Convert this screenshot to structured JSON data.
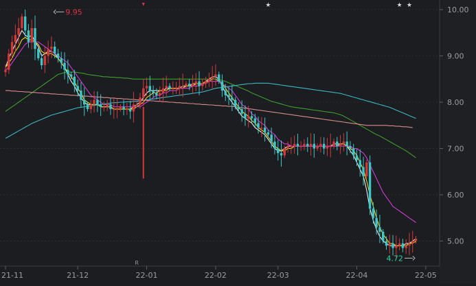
{
  "chart_data": {
    "type": "candlestick",
    "y_axis": {
      "ticks": [
        "10.00",
        "9.00",
        "8.00",
        "7.00",
        "6.00",
        "5.00"
      ],
      "tick_values": [
        10,
        9,
        8,
        7,
        6,
        5
      ],
      "ylim": [
        4.5,
        10.1
      ],
      "side": "right"
    },
    "x_axis": {
      "ticks": [
        "21-11",
        "21-12",
        "22-01",
        "22-02",
        "22-03",
        "22-04",
        "22-05"
      ],
      "tick_index": [
        0,
        22,
        43,
        64,
        83,
        107,
        128
      ]
    },
    "annotations": {
      "high": {
        "label": "9.95",
        "value": 9.95,
        "index": 8,
        "color": "#e0314b"
      },
      "low": {
        "label": "4.72",
        "value": 4.72,
        "index": 123,
        "color": "#2fd39a"
      }
    },
    "markers": [
      {
        "kind": "flag",
        "index": 42,
        "color": "#e0314b"
      },
      {
        "kind": "star",
        "index": 80,
        "color": "#d8d8d8"
      },
      {
        "kind": "star",
        "index": 120,
        "color": "#d8d8d8"
      },
      {
        "kind": "star",
        "index": 123,
        "color": "#d8d8d8"
      },
      {
        "kind": "R",
        "label": "R",
        "index": 40,
        "color": "#9a9a9a"
      }
    ],
    "colors": {
      "up": "#d23a3a",
      "down": "#3fc7c7",
      "grid": "#2c2f35",
      "axis_text": "#9a9da3",
      "background": "#1b1d21"
    },
    "closes": [
      8.7,
      9.05,
      9.3,
      9.45,
      9.6,
      9.85,
      9.55,
      9.3,
      9.6,
      9.15,
      8.95,
      8.8,
      9.0,
      9.15,
      9.2,
      9.05,
      8.95,
      8.85,
      8.7,
      8.6,
      8.55,
      8.35,
      8.25,
      8.05,
      7.95,
      7.85,
      7.95,
      8.05,
      7.95,
      7.9,
      7.9,
      7.95,
      7.85,
      7.85,
      7.85,
      7.9,
      7.85,
      7.85,
      7.8,
      7.95,
      7.95,
      8.1,
      8.3,
      8.35,
      8.25,
      8.2,
      8.15,
      8.2,
      8.3,
      8.35,
      8.3,
      8.3,
      8.3,
      8.35,
      8.35,
      8.4,
      8.35,
      8.4,
      8.45,
      8.35,
      8.4,
      8.45,
      8.5,
      8.55,
      8.6,
      8.45,
      8.25,
      8.15,
      8.1,
      8.05,
      7.9,
      7.85,
      7.75,
      7.65,
      7.7,
      7.65,
      7.55,
      7.45,
      7.45,
      7.35,
      7.3,
      7.15,
      7.0,
      6.9,
      6.85,
      7.0,
      7.05,
      7.05,
      7.1,
      7.05,
      7.05,
      7.1,
      7.05,
      7.1,
      7.0,
      7.05,
      7.1,
      7.0,
      7.05,
      7.05,
      7.15,
      7.05,
      7.1,
      7.15,
      7.05,
      7.0,
      6.85,
      6.75,
      6.6,
      6.4,
      6.7,
      5.7,
      5.5,
      5.3,
      5.2,
      5.0,
      4.9,
      4.95,
      4.85,
      4.9,
      4.95,
      4.85,
      4.9,
      4.95,
      5.0,
      5.05
    ],
    "series": [
      {
        "name": "",
        "color": "#f0f0f0",
        "values": [
          8.75,
          8.95,
          9.1,
          9.25,
          9.4,
          9.55,
          9.45,
          9.4,
          9.45,
          9.3,
          9.2,
          9.0,
          9.05,
          9.1,
          9.1,
          9.05,
          8.95,
          8.85,
          8.75,
          8.6,
          8.45,
          8.35,
          8.2,
          8.1,
          8.0,
          7.95,
          7.95,
          7.95,
          7.95,
          7.9,
          7.9,
          7.9,
          7.9,
          7.85,
          7.85,
          7.85,
          7.85,
          7.85,
          7.85,
          7.9,
          7.95,
          8.0,
          8.1,
          8.2,
          8.25,
          8.25,
          8.25,
          8.25,
          8.25,
          8.3,
          8.3,
          8.3,
          8.3,
          8.3,
          8.35,
          8.35,
          8.35,
          8.4,
          8.4,
          8.4,
          8.4,
          8.45,
          8.5,
          8.55,
          8.55,
          8.5,
          8.35,
          8.2,
          8.1,
          8.0,
          7.9,
          7.8,
          7.7,
          7.65,
          7.6,
          7.55,
          7.45,
          7.4,
          7.35,
          7.3,
          7.2,
          7.1,
          7.0,
          6.95,
          6.95,
          7.0,
          7.05,
          7.05,
          7.05,
          7.05,
          7.05,
          7.05,
          7.05,
          7.05,
          7.05,
          7.05,
          7.05,
          7.05,
          7.05,
          7.05,
          7.1,
          7.1,
          7.1,
          7.1,
          7.05,
          6.95,
          6.85,
          6.7,
          6.55,
          6.4,
          6.1,
          5.7,
          5.45,
          5.25,
          5.1,
          5.0,
          4.95,
          4.9,
          4.9,
          4.9,
          4.9,
          4.9,
          4.95,
          4.95,
          5.0,
          5.05
        ]
      },
      {
        "name": "",
        "color": "#f2d51c",
        "values": [
          8.75,
          8.85,
          8.95,
          9.1,
          9.2,
          9.35,
          9.4,
          9.35,
          9.35,
          9.3,
          9.25,
          9.1,
          9.05,
          9.05,
          9.05,
          9.0,
          8.95,
          8.85,
          8.75,
          8.65,
          8.55,
          8.45,
          8.3,
          8.2,
          8.05,
          8.0,
          7.95,
          7.95,
          7.95,
          7.9,
          7.9,
          7.9,
          7.9,
          7.85,
          7.85,
          7.85,
          7.85,
          7.85,
          7.85,
          7.85,
          7.9,
          7.95,
          8.0,
          8.1,
          8.15,
          8.2,
          8.2,
          8.25,
          8.25,
          8.25,
          8.3,
          8.3,
          8.3,
          8.3,
          8.3,
          8.35,
          8.35,
          8.35,
          8.4,
          8.4,
          8.4,
          8.45,
          8.45,
          8.5,
          8.5,
          8.45,
          8.4,
          8.3,
          8.2,
          8.1,
          8.0,
          7.9,
          7.8,
          7.75,
          7.7,
          7.6,
          7.55,
          7.45,
          7.4,
          7.35,
          7.25,
          7.15,
          7.05,
          7.0,
          6.95,
          6.95,
          7.0,
          7.0,
          7.05,
          7.05,
          7.05,
          7.05,
          7.05,
          7.05,
          7.05,
          7.05,
          7.05,
          7.05,
          7.05,
          7.05,
          7.05,
          7.05,
          7.1,
          7.1,
          7.05,
          7.0,
          6.95,
          6.85,
          6.7,
          6.55,
          6.3,
          6.0,
          5.75,
          5.5,
          5.3,
          5.15,
          5.05,
          4.95,
          4.95,
          4.9,
          4.9,
          4.9,
          4.9,
          4.95,
          4.95,
          5.0
        ]
      },
      {
        "name": "",
        "color": "#d33bd6",
        "values": [
          8.7,
          8.75,
          8.85,
          8.95,
          9.05,
          9.15,
          9.25,
          9.3,
          9.3,
          9.3,
          9.3,
          9.25,
          9.2,
          9.15,
          9.1,
          9.05,
          9.0,
          8.95,
          8.9,
          8.85,
          8.75,
          8.65,
          8.55,
          8.45,
          8.35,
          8.25,
          8.15,
          8.1,
          8.05,
          8.0,
          7.95,
          7.95,
          7.95,
          7.9,
          7.9,
          7.9,
          7.9,
          7.9,
          7.9,
          7.9,
          7.9,
          7.9,
          7.95,
          8.0,
          8.05,
          8.1,
          8.15,
          8.15,
          8.2,
          8.2,
          8.25,
          8.25,
          8.25,
          8.3,
          8.3,
          8.3,
          8.3,
          8.35,
          8.35,
          8.35,
          8.4,
          8.4,
          8.45,
          8.45,
          8.45,
          8.45,
          8.4,
          8.35,
          8.3,
          8.25,
          8.15,
          8.05,
          7.95,
          7.9,
          7.85,
          7.75,
          7.7,
          7.6,
          7.55,
          7.5,
          7.4,
          7.35,
          7.3,
          7.2,
          7.15,
          7.1,
          7.1,
          7.05,
          7.05,
          7.05,
          7.05,
          7.05,
          7.05,
          7.05,
          7.05,
          7.05,
          7.05,
          7.05,
          7.05,
          7.05,
          7.05,
          7.05,
          7.05,
          7.05,
          7.05,
          7.05,
          7.0,
          7.0,
          6.95,
          6.9,
          6.8,
          6.65,
          6.5,
          6.35,
          6.2,
          6.05,
          5.95,
          5.85,
          5.75,
          5.7,
          5.65,
          5.6,
          5.55,
          5.5,
          5.45,
          5.4
        ]
      },
      {
        "name": "",
        "color": "#3f9e2c",
        "values": [
          7.8,
          7.85,
          7.9,
          7.95,
          8.0,
          8.05,
          8.1,
          8.15,
          8.2,
          8.25,
          8.3,
          8.35,
          8.4,
          8.45,
          8.5,
          8.55,
          8.6,
          8.62,
          8.64,
          8.65,
          8.65,
          8.65,
          8.64,
          8.63,
          8.62,
          8.6,
          8.59,
          8.58,
          8.57,
          8.56,
          8.55,
          8.55,
          8.54,
          8.54,
          8.53,
          8.53,
          8.52,
          8.52,
          8.51,
          8.5,
          8.5,
          8.5,
          8.5,
          8.5,
          8.5,
          8.5,
          8.5,
          8.5,
          8.5,
          8.5,
          8.5,
          8.5,
          8.5,
          8.5,
          8.5,
          8.5,
          8.5,
          8.5,
          8.5,
          8.5,
          8.5,
          8.5,
          8.5,
          8.5,
          8.5,
          8.49,
          8.47,
          8.45,
          8.42,
          8.39,
          8.36,
          8.33,
          8.3,
          8.27,
          8.24,
          8.2,
          8.17,
          8.14,
          8.11,
          8.08,
          8.05,
          8.02,
          8.0,
          7.98,
          7.96,
          7.94,
          7.92,
          7.9,
          7.89,
          7.88,
          7.87,
          7.86,
          7.85,
          7.84,
          7.83,
          7.82,
          7.81,
          7.8,
          7.79,
          7.78,
          7.77,
          7.75,
          7.73,
          7.7,
          7.66,
          7.62,
          7.58,
          7.54,
          7.5,
          7.46,
          7.42,
          7.38,
          7.34,
          7.3,
          7.27,
          7.23,
          7.19,
          7.15,
          7.11,
          7.07,
          7.03,
          6.99,
          6.95,
          6.9,
          6.85,
          6.8
        ]
      },
      {
        "name": "",
        "color": "#3ab9c6",
        "values": [
          7.22,
          7.26,
          7.3,
          7.34,
          7.38,
          7.42,
          7.46,
          7.5,
          7.54,
          7.57,
          7.6,
          7.63,
          7.66,
          7.69,
          7.72,
          7.74,
          7.76,
          7.78,
          7.8,
          7.82,
          7.84,
          7.86,
          7.88,
          7.89,
          7.9,
          7.91,
          7.92,
          7.93,
          7.94,
          7.95,
          7.96,
          7.97,
          7.98,
          7.99,
          7.99,
          8.0,
          8.0,
          8.01,
          8.01,
          8.02,
          8.02,
          8.03,
          8.04,
          8.05,
          8.06,
          8.07,
          8.08,
          8.09,
          8.1,
          8.11,
          8.12,
          8.13,
          8.14,
          8.15,
          8.16,
          8.17,
          8.18,
          8.19,
          8.2,
          8.21,
          8.22,
          8.24,
          8.26,
          8.28,
          8.3,
          8.31,
          8.32,
          8.33,
          8.34,
          8.35,
          8.36,
          8.37,
          8.38,
          8.39,
          8.4,
          8.4,
          8.41,
          8.41,
          8.41,
          8.41,
          8.41,
          8.4,
          8.39,
          8.38,
          8.37,
          8.36,
          8.35,
          8.34,
          8.33,
          8.32,
          8.31,
          8.3,
          8.29,
          8.28,
          8.27,
          8.26,
          8.25,
          8.24,
          8.23,
          8.22,
          8.21,
          8.2,
          8.19,
          8.17,
          8.15,
          8.13,
          8.11,
          8.09,
          8.07,
          8.05,
          8.03,
          8.01,
          7.99,
          7.97,
          7.95,
          7.93,
          7.91,
          7.89,
          7.86,
          7.83,
          7.8,
          7.77,
          7.74,
          7.71,
          7.68,
          7.65
        ]
      },
      {
        "name": "",
        "color": "#d98c8c",
        "values": [
          8.25,
          8.25,
          8.24,
          8.24,
          8.23,
          8.23,
          8.22,
          8.22,
          8.21,
          8.21,
          8.2,
          8.2,
          8.19,
          8.19,
          8.18,
          8.18,
          8.17,
          8.17,
          8.16,
          8.16,
          8.15,
          8.15,
          8.14,
          8.14,
          8.13,
          8.13,
          8.12,
          8.12,
          8.11,
          8.11,
          8.1,
          8.1,
          8.09,
          8.09,
          8.08,
          8.08,
          8.07,
          8.07,
          8.06,
          8.06,
          8.05,
          8.05,
          8.04,
          8.04,
          8.03,
          8.03,
          8.02,
          8.02,
          8.01,
          8.01,
          8.0,
          8.0,
          7.99,
          7.99,
          7.98,
          7.98,
          7.97,
          7.97,
          7.96,
          7.96,
          7.95,
          7.95,
          7.94,
          7.94,
          7.93,
          7.93,
          7.92,
          7.92,
          7.91,
          7.91,
          7.9,
          7.89,
          7.88,
          7.87,
          7.86,
          7.85,
          7.84,
          7.83,
          7.82,
          7.81,
          7.8,
          7.79,
          7.78,
          7.77,
          7.76,
          7.75,
          7.74,
          7.73,
          7.72,
          7.71,
          7.7,
          7.69,
          7.68,
          7.67,
          7.66,
          7.65,
          7.64,
          7.63,
          7.62,
          7.61,
          7.6,
          7.59,
          7.58,
          7.57,
          7.56,
          7.55,
          7.54,
          7.53,
          7.52,
          7.51,
          7.5,
          7.5,
          7.5,
          7.5,
          7.5,
          7.5,
          7.5,
          7.49,
          7.49,
          7.48,
          7.48,
          7.47,
          7.47,
          7.46,
          7.45
        ]
      }
    ]
  }
}
